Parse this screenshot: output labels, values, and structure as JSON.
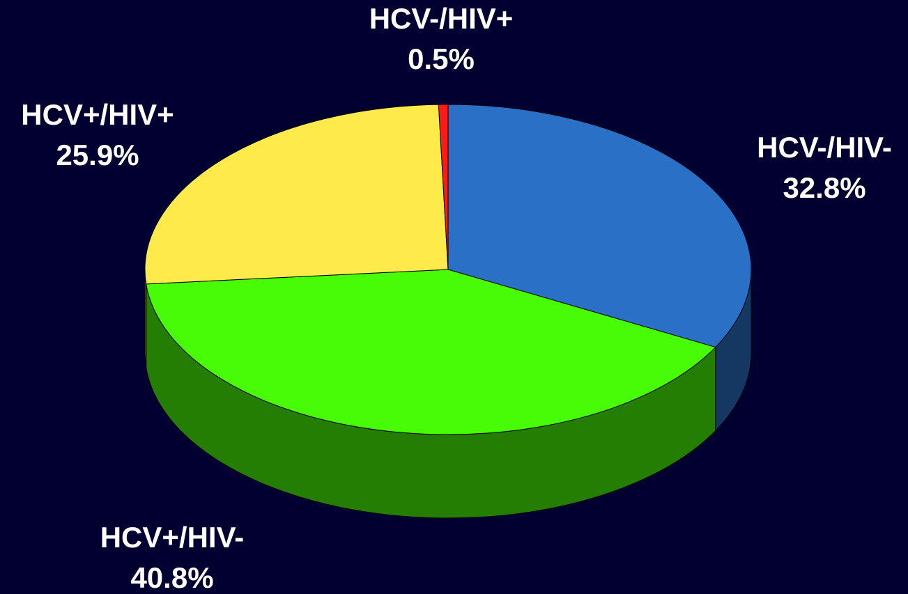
{
  "chart_data": {
    "type": "pie3d",
    "categories": [
      "HCV-/HIV-",
      "HCV+/HIV-",
      "HCV+/HIV+",
      "HCV-/HIV+"
    ],
    "values": [
      32.8,
      40.8,
      25.9,
      0.5
    ],
    "value_labels": [
      "32.8%",
      "40.8%",
      "25.9%",
      "0.5%"
    ],
    "colors": [
      "#2970c6",
      "#48fc08",
      "#ffea4c",
      "#ff1a1a"
    ]
  }
}
